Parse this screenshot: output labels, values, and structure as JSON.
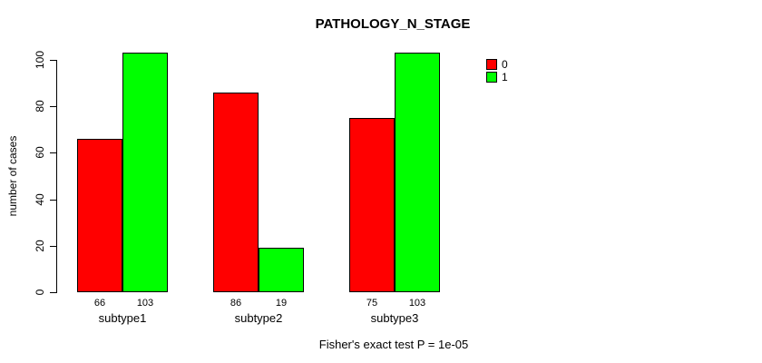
{
  "chart_data": {
    "type": "bar",
    "title": "PATHOLOGY_N_STAGE",
    "categories": [
      "subtype1",
      "subtype2",
      "subtype3"
    ],
    "series": [
      {
        "name": "0",
        "color": "#FF0000",
        "values": [
          66,
          86,
          75
        ]
      },
      {
        "name": "1",
        "color": "#00FF00",
        "values": [
          103,
          19,
          103
        ]
      }
    ],
    "xlabel": "",
    "ylabel": "number of cases",
    "ylim": [
      0,
      100
    ],
    "yticks": [
      0,
      20,
      40,
      60,
      80,
      100
    ],
    "grid": false,
    "bar_value_labels_shown": true,
    "legend_position": "top-right",
    "legend_items": [
      "0",
      "1"
    ],
    "annotation": "Fisher's exact test P = 1e-05"
  }
}
